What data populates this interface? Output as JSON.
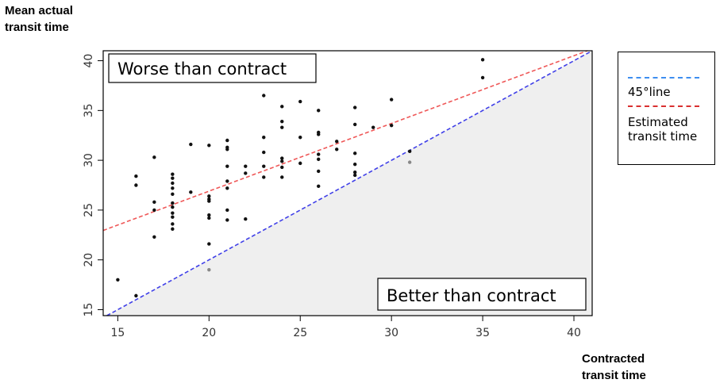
{
  "chart_data": {
    "type": "scatter",
    "ylabel": "Mean actual\ntransit time",
    "xlabel": "Contracted\ntransit time",
    "xlim": [
      14.2,
      41
    ],
    "ylim": [
      14.4,
      41
    ],
    "xticks": [
      15,
      20,
      25,
      30,
      35,
      40
    ],
    "yticks": [
      15,
      20,
      25,
      30,
      35,
      40
    ],
    "annotations": {
      "upper": "Worse than contract",
      "lower": "Better than contract"
    },
    "legend": {
      "position": "right",
      "entries": [
        {
          "label": "45°line",
          "color": "#3d8ef0",
          "style": "dashed"
        },
        {
          "label": "Estimated\ntransit time",
          "color": "#d93030",
          "style": "dashed"
        }
      ]
    },
    "lines": [
      {
        "name": "45°line",
        "slope": 1,
        "intercept": 0,
        "color": "#4040e8"
      },
      {
        "name": "Estimated transit time",
        "slope": 0.68,
        "intercept": 13.3,
        "color": "#ef5858"
      }
    ],
    "shaded_region": "below 45° line",
    "grid": false,
    "points": [
      {
        "x": 15,
        "y": 18
      },
      {
        "x": 16,
        "y": 16.4
      },
      {
        "x": 16,
        "y": 27.5
      },
      {
        "x": 16,
        "y": 28.4
      },
      {
        "x": 17,
        "y": 22.3
      },
      {
        "x": 17,
        "y": 25
      },
      {
        "x": 17,
        "y": 25.8
      },
      {
        "x": 17,
        "y": 30.3
      },
      {
        "x": 18,
        "y": 23.1
      },
      {
        "x": 18,
        "y": 23.6
      },
      {
        "x": 18,
        "y": 24.3
      },
      {
        "x": 18,
        "y": 24.7
      },
      {
        "x": 18,
        "y": 25.3
      },
      {
        "x": 18,
        "y": 25.7
      },
      {
        "x": 18,
        "y": 26.6
      },
      {
        "x": 18,
        "y": 27.2
      },
      {
        "x": 18,
        "y": 27.7
      },
      {
        "x": 18,
        "y": 28.2
      },
      {
        "x": 18,
        "y": 28.6
      },
      {
        "x": 19,
        "y": 26.8
      },
      {
        "x": 19,
        "y": 31.6
      },
      {
        "x": 20,
        "y": 19,
        "grey": true
      },
      {
        "x": 20,
        "y": 21.6
      },
      {
        "x": 20,
        "y": 24.2
      },
      {
        "x": 20,
        "y": 24.5
      },
      {
        "x": 20,
        "y": 25.9
      },
      {
        "x": 20,
        "y": 26.1
      },
      {
        "x": 20,
        "y": 26.4
      },
      {
        "x": 20,
        "y": 31.5
      },
      {
        "x": 21,
        "y": 24
      },
      {
        "x": 21,
        "y": 25
      },
      {
        "x": 21,
        "y": 27.2
      },
      {
        "x": 21,
        "y": 27.9
      },
      {
        "x": 21,
        "y": 29.4
      },
      {
        "x": 21,
        "y": 31.1
      },
      {
        "x": 21,
        "y": 31.3
      },
      {
        "x": 21,
        "y": 32
      },
      {
        "x": 22,
        "y": 24.1
      },
      {
        "x": 22,
        "y": 28.7
      },
      {
        "x": 22,
        "y": 29.4
      },
      {
        "x": 23,
        "y": 28.3
      },
      {
        "x": 23,
        "y": 29.4
      },
      {
        "x": 23,
        "y": 30.8
      },
      {
        "x": 23,
        "y": 32.3
      },
      {
        "x": 23,
        "y": 36.5
      },
      {
        "x": 24,
        "y": 28.3
      },
      {
        "x": 24,
        "y": 29.3
      },
      {
        "x": 24,
        "y": 29.9
      },
      {
        "x": 24,
        "y": 30.2
      },
      {
        "x": 24,
        "y": 33.3
      },
      {
        "x": 24,
        "y": 33.9
      },
      {
        "x": 24,
        "y": 35.4
      },
      {
        "x": 25,
        "y": 29.7
      },
      {
        "x": 25,
        "y": 32.3
      },
      {
        "x": 25,
        "y": 35.9
      },
      {
        "x": 26,
        "y": 27.4
      },
      {
        "x": 26,
        "y": 28.9
      },
      {
        "x": 26,
        "y": 30.1
      },
      {
        "x": 26,
        "y": 30.6
      },
      {
        "x": 26,
        "y": 32.6
      },
      {
        "x": 26,
        "y": 32.8
      },
      {
        "x": 26,
        "y": 35
      },
      {
        "x": 27,
        "y": 31.1
      },
      {
        "x": 27,
        "y": 31.9
      },
      {
        "x": 28,
        "y": 28.5
      },
      {
        "x": 28,
        "y": 28.8
      },
      {
        "x": 28,
        "y": 29.6
      },
      {
        "x": 28,
        "y": 30.7
      },
      {
        "x": 28,
        "y": 33.6
      },
      {
        "x": 28,
        "y": 35.3
      },
      {
        "x": 29,
        "y": 33.3
      },
      {
        "x": 30,
        "y": 33.5
      },
      {
        "x": 30,
        "y": 36.1
      },
      {
        "x": 31,
        "y": 29.8,
        "grey": true
      },
      {
        "x": 31,
        "y": 30.9
      },
      {
        "x": 35,
        "y": 38.3
      },
      {
        "x": 35,
        "y": 40.1
      }
    ]
  }
}
